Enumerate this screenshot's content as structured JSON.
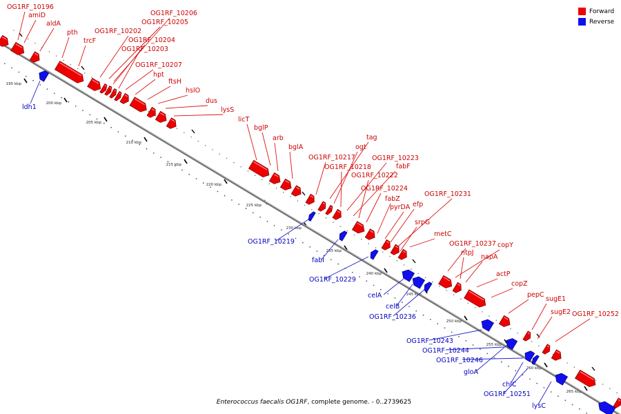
{
  "caption": {
    "organism": "Enterococcus faecalis OG1RF",
    "rest": ", complete genome. - 0..2739625"
  },
  "legend": [
    {
      "label": "Forward",
      "color": "#ee0000"
    },
    {
      "label": "Reverse",
      "color": "#1010ee"
    }
  ],
  "colors": {
    "forward": "#ee0000",
    "reverse": "#1010ee",
    "backbone": "#888888",
    "forward_label": "#cc0000",
    "reverse_label": "#0000bb"
  },
  "kbp_ticks": [
    "195 kbp",
    "200 kbp",
    "205 kbp",
    "210 kbp",
    "215 kbp",
    "220 kbp",
    "225 kbp",
    "230 kbp",
    "235 kbp",
    "240 kbp",
    "245 kbp",
    "250 kbp",
    "255 kbp",
    "260 kbp",
    "265 kbp"
  ],
  "forward_genes": [
    "OG1RF_10196",
    "amiD",
    "aldA",
    "pth",
    "trcF",
    "OG1RF_10202",
    "OG1RF_10206",
    "OG1RF_10205",
    "OG1RF_10204",
    "OG1RF_10203",
    "OG1RF_10207",
    "hpt",
    "ftsH",
    "hslO",
    "dus",
    "lysS",
    "licT",
    "bglP",
    "arb",
    "bglA",
    "OG1RF_10217",
    "tag",
    "ogt",
    "OG1RF_10218",
    "OG1RF_10223",
    "fabF",
    "OG1RF_10222",
    "OG1RF_10224",
    "fabZ",
    "pyrDA",
    "efp",
    "OG1RF_10231",
    "srpG",
    "metC",
    "OG1RF_10237",
    "copY",
    "ntpJ",
    "napA",
    "actP",
    "copZ",
    "pepC",
    "sugE1",
    "sugE2",
    "OG1RF_10252"
  ],
  "reverse_genes": [
    "ldh1",
    "OG1RF_10219",
    "fabI",
    "OG1RF_10229",
    "celA",
    "celB",
    "OG1RF_10236",
    "OG1RF_10243",
    "OG1RF_10244",
    "OG1RF_10246",
    "gloA",
    "chiC",
    "OG1RF_10251",
    "lysC"
  ]
}
